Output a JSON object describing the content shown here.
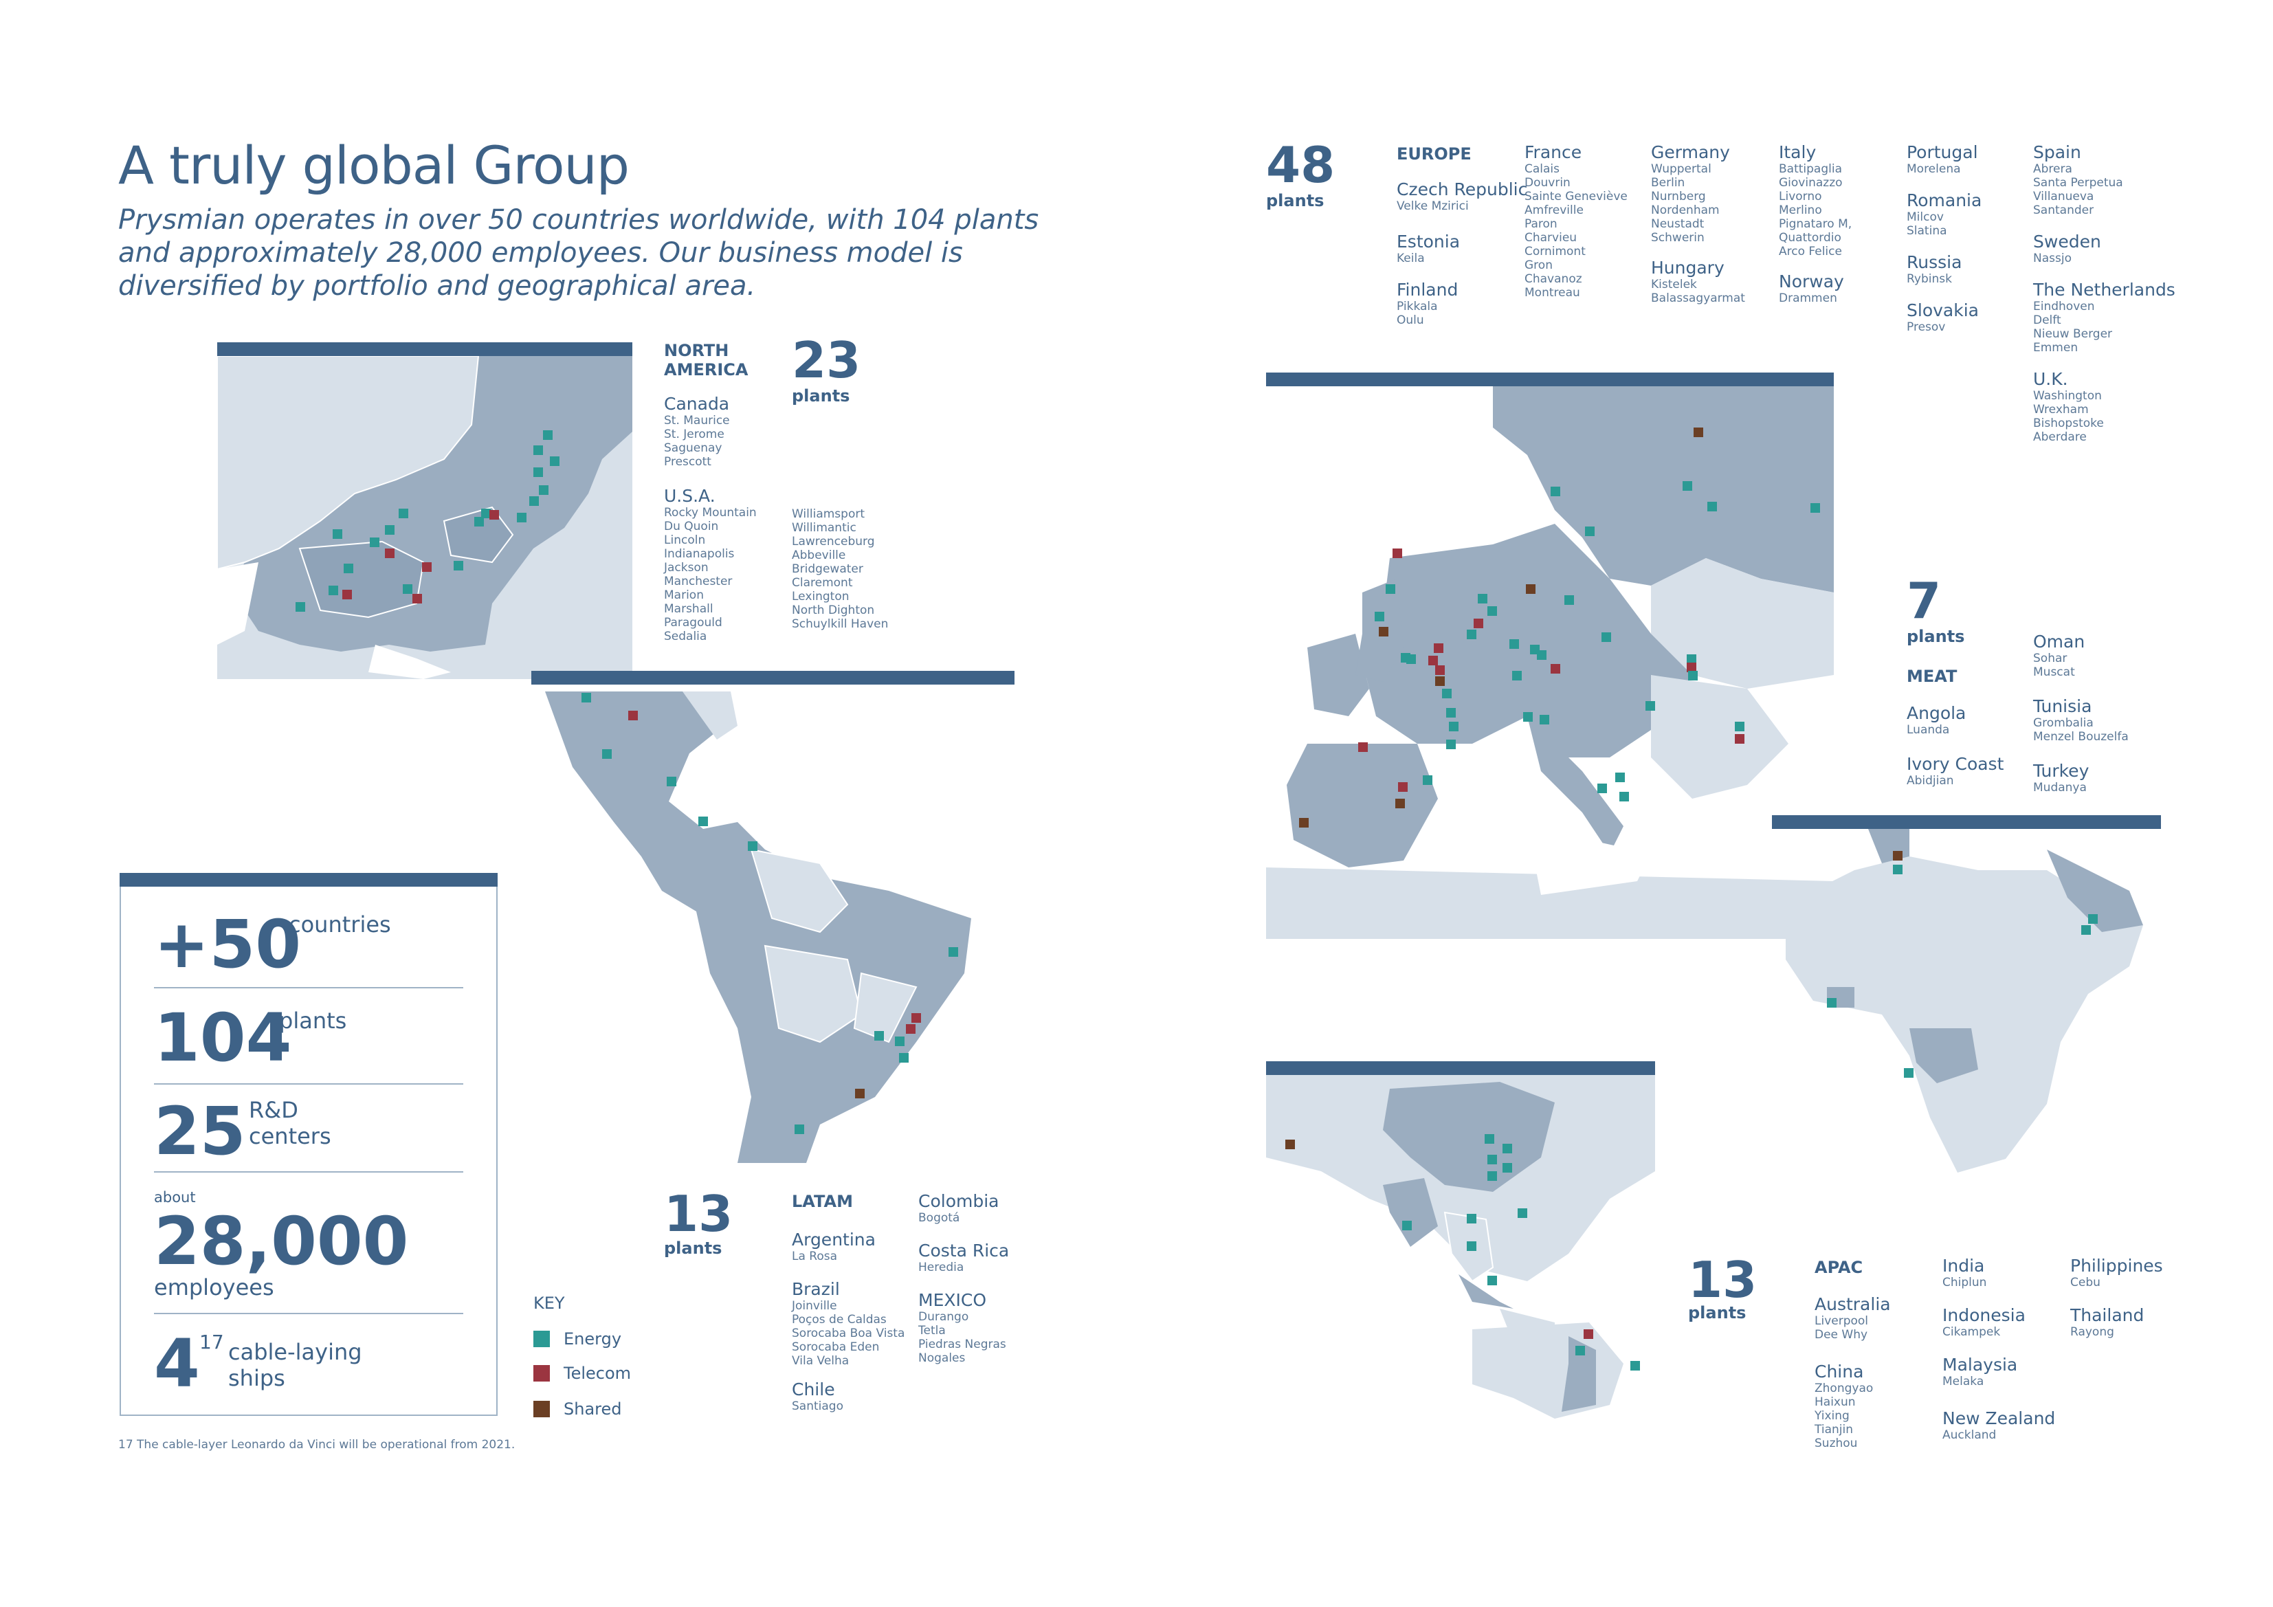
{
  "header": {
    "title": "A truly global Group",
    "subtitle": "Prysmian operates in over 50 countries worldwide, with 104 plants and approximately 28,000 employees. Our business model is diversified by portfolio and geographical area."
  },
  "colors": {
    "navy": "#3e6287",
    "energy": "#2b9a94",
    "telecom": "#9b3540",
    "shared": "#6b3f24",
    "land": "#9badc0",
    "land_light": "#d7e0e9"
  },
  "north_america": {
    "count": "23",
    "plants_label": "plants",
    "region": "NORTH\nAMERICA",
    "countries": [
      {
        "name": "Canada",
        "cities": "St. Maurice\nSt. Jerome\nSaguenay\nPrescott"
      },
      {
        "name": "U.S.A.",
        "cities": "Rocky Mountain\nDu Quoin\nLincoln\nIndianapolis\nJackson\nManchester\nMarion\nMarshall\nParagould\nSedalia"
      }
    ],
    "usa_cities_col2": "Williamsport\nWillimantic\nLawrenceburg\nAbbeville\nBridgewater\nClaremont\nLexington\nNorth Dighton\nSchuylkill Haven"
  },
  "latam": {
    "count": "13",
    "plants_label": "plants",
    "region": "LATAM",
    "col1": [
      {
        "name": "Argentina",
        "cities": "La Rosa"
      },
      {
        "name": "Brazil",
        "cities": "Joinville\nPoços de Caldas\nSorocaba Boa Vista\nSorocaba Eden\nVila Velha"
      },
      {
        "name": "Chile",
        "cities": "Santiago"
      }
    ],
    "col2": [
      {
        "name": "Colombia",
        "cities": "Bogotá"
      },
      {
        "name": "Costa Rica",
        "cities": "Heredia"
      },
      {
        "name": "MEXICO",
        "cities": "Durango\nTetla\nPiedras Negras\nNogales"
      }
    ]
  },
  "stats": {
    "countries": {
      "value": "+50",
      "label": "countries"
    },
    "plants": {
      "value": "104",
      "label": "plants"
    },
    "rd": {
      "value": "25",
      "label": "R&D\ncenters"
    },
    "employees": {
      "prefix": "about",
      "value": "28,000",
      "label": "employees"
    },
    "ships": {
      "value": "4",
      "sup": "17",
      "label": "cable-laying\nships"
    }
  },
  "key": {
    "title": "KEY",
    "items": [
      {
        "label": "Energy"
      },
      {
        "label": "Telecom"
      },
      {
        "label": "Shared"
      }
    ]
  },
  "footnote": "17   The cable-layer Leonardo da Vinci will be operational from 2021.",
  "europe": {
    "count": "48",
    "plants_label": "plants",
    "region": "EUROPE",
    "col1": [
      {
        "name": "Czech Republic",
        "cities": "Velke Mzirici"
      },
      {
        "name": "Estonia",
        "cities": "Keila"
      },
      {
        "name": "Finland",
        "cities": "Pikkala\nOulu"
      }
    ],
    "col2": [
      {
        "name": "France",
        "cities": "Calais\nDouvrin\nSainte Geneviève\nAmfreville\nParon\nCharvieu\nCornimont\nGron\nChavanoz\nMontreau"
      }
    ],
    "col3": [
      {
        "name": "Germany",
        "cities": "Wuppertal\nBerlin\nNurnberg\nNordenham\nNeustadt\nSchwerin"
      },
      {
        "name": "Hungary",
        "cities": "Kistelek\nBalassagyarmat"
      }
    ],
    "col4": [
      {
        "name": "Italy",
        "cities": "Battipaglia\nGiovinazzo\nLivorno\nMerlino\nPignataro M,\nQuattordio\nArco Felice"
      },
      {
        "name": "Norway",
        "cities": "Drammen"
      }
    ],
    "col5": [
      {
        "name": "Portugal",
        "cities": "Morelena"
      },
      {
        "name": "Romania",
        "cities": "Milcov\nSlatina"
      },
      {
        "name": "Russia",
        "cities": "Rybinsk"
      },
      {
        "name": "Slovakia",
        "cities": "Presov"
      }
    ],
    "col6": [
      {
        "name": "Spain",
        "cities": "Abrera\nSanta Perpetua\nVillanueva\nSantander"
      },
      {
        "name": "Sweden",
        "cities": "Nassjo"
      },
      {
        "name": "The Netherlands",
        "cities": "Eindhoven\nDelft\nNieuw Berger\nEmmen"
      },
      {
        "name": "U.K.",
        "cities": "Washington\nWrexham\nBishopstoke\nAberdare"
      }
    ]
  },
  "meat": {
    "count": "7",
    "plants_label": "plants",
    "region": "MEAT",
    "col1": [
      {
        "name": "Angola",
        "cities": "Luanda"
      },
      {
        "name": "Ivory Coast",
        "cities": "Abidjian"
      }
    ],
    "col2": [
      {
        "name": "Oman",
        "cities": "Sohar\nMuscat"
      },
      {
        "name": "Tunisia",
        "cities": "Grombalia\nMenzel Bouzelfa"
      },
      {
        "name": "Turkey",
        "cities": "Mudanya"
      }
    ]
  },
  "apac": {
    "count": "13",
    "plants_label": "plants",
    "region": "APAC",
    "col1": [
      {
        "name": "Australia",
        "cities": "Liverpool\nDee Why"
      },
      {
        "name": "China",
        "cities": "Zhongyao\nHaixun\nYixing\nTianjin\nSuzhou"
      }
    ],
    "col2": [
      {
        "name": "India",
        "cities": "Chiplun"
      },
      {
        "name": "Indonesia",
        "cities": "Cikampek"
      },
      {
        "name": "Malaysia",
        "cities": "Melaka"
      },
      {
        "name": "New Zealand",
        "cities": "Auckland"
      }
    ],
    "col3": [
      {
        "name": "Philippines",
        "cities": "Cebu"
      },
      {
        "name": "Thailand",
        "cities": "Rayong"
      }
    ]
  }
}
